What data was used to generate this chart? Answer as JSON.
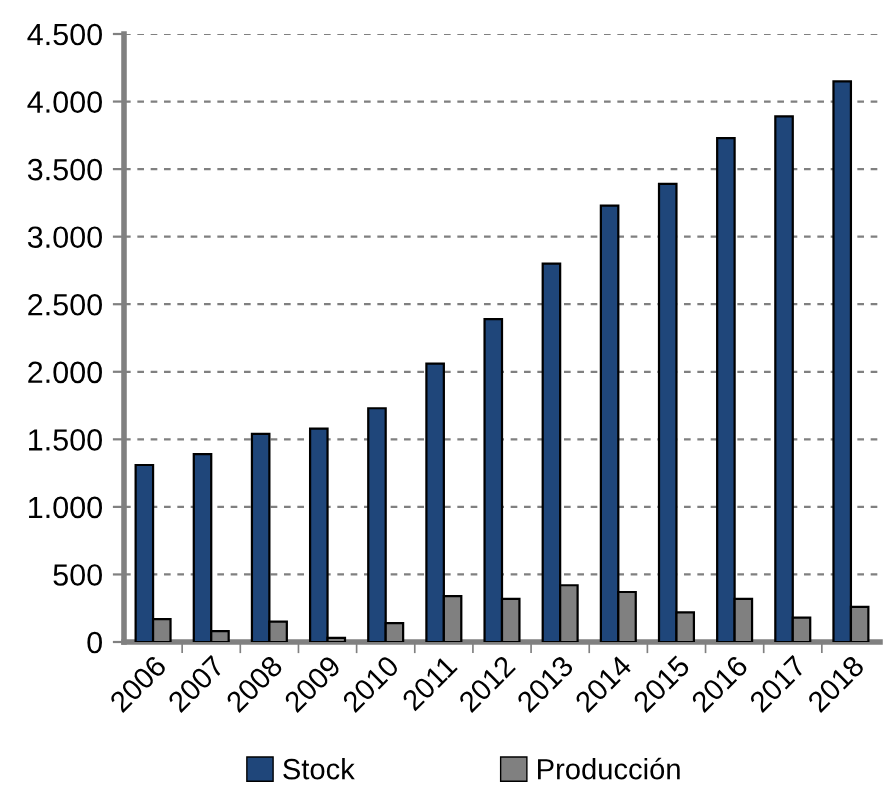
{
  "chart_data": {
    "type": "bar",
    "categories": [
      "2006",
      "2007",
      "2008",
      "2009",
      "2010",
      "2011",
      "2012",
      "2013",
      "2014",
      "2015",
      "2016",
      "2017",
      "2018"
    ],
    "series": [
      {
        "name": "Stock",
        "color": "#1f467a",
        "values": [
          1310,
          1390,
          1540,
          1580,
          1730,
          2060,
          2390,
          2800,
          3230,
          3390,
          3730,
          3890,
          4150
        ]
      },
      {
        "name": "Producción",
        "color": "#808080",
        "values": [
          170,
          80,
          150,
          30,
          140,
          340,
          320,
          420,
          370,
          220,
          320,
          180,
          260
        ]
      }
    ],
    "ylim": [
      0,
      4500
    ],
    "yticks": [
      {
        "value": 0,
        "label": "0"
      },
      {
        "value": 500,
        "label": "500"
      },
      {
        "value": 1000,
        "label": "1.000"
      },
      {
        "value": 1500,
        "label": "1.500"
      },
      {
        "value": 2000,
        "label": "2.000"
      },
      {
        "value": 2500,
        "label": "2.500"
      },
      {
        "value": 3000,
        "label": "3.000"
      },
      {
        "value": 3500,
        "label": "3.500"
      },
      {
        "value": 4000,
        "label": "4.000"
      },
      {
        "value": 4500,
        "label": "4.500"
      }
    ],
    "grid": "y",
    "legend": "bottom"
  }
}
